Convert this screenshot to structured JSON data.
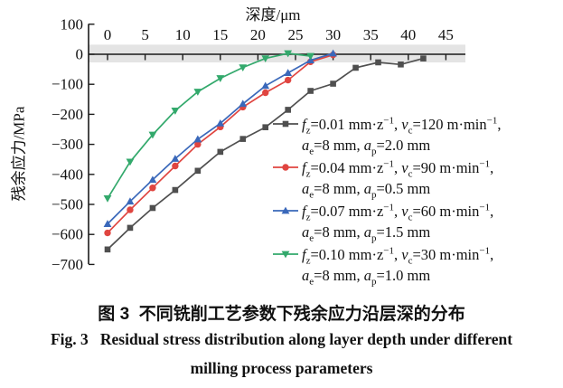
{
  "figure": {
    "x_axis_title": "深度/μm",
    "y_axis_label": "残余应力/MPa"
  },
  "captions": {
    "zh": "图 3  不同铣削工艺参数下残余应力沿层深的分布",
    "en_line1": "Fig. 3   Residual stress distribution along layer depth under different",
    "en_line2": "milling process parameters"
  },
  "chart_data": {
    "type": "line",
    "title": "深度/μm",
    "xlabel": "深度/μm",
    "ylabel": "残余应力/MPa",
    "x_axis": {
      "ticks": [
        0,
        5,
        10,
        15,
        20,
        25,
        30,
        35,
        40,
        45
      ],
      "tick_labels": [
        "0",
        "5",
        "10",
        "15",
        "20",
        "25",
        "30",
        "35",
        "40",
        "45"
      ],
      "range": [
        0,
        47.5
      ],
      "position": "drawn along the 0 MPa line, labels above"
    },
    "y_axis": {
      "ticks": [
        100,
        0,
        -100,
        -200,
        -300,
        -400,
        -500,
        -600,
        -700
      ],
      "tick_labels": [
        "100",
        "0",
        "−100",
        "−200",
        "−300",
        "−400",
        "−500",
        "−600",
        "−700"
      ],
      "range": [
        -700,
        100
      ]
    },
    "grid": false,
    "legend_position": "right side, overlapping plot area, no border",
    "zero_band": {
      "value_from": 32,
      "value_to": -27,
      "color": "#e4e4e4"
    },
    "axis_color": "#1a1a1a",
    "series": [
      {
        "name": "fz=0.01 mm/z, vc=120 m/min, ae=8 mm, ap=2.0 mm",
        "marker": "square",
        "color": "#4f4f4f",
        "legend_line1": "f_{z}=0.01 mm·z^{−1}, v_{c}=120 m·min^{−1},",
        "legend_line2": "a_{e}=8 mm, a_{p}=2.0 mm",
        "points": [
          [
            0,
            -650
          ],
          [
            3,
            -578
          ],
          [
            6,
            -512
          ],
          [
            9,
            -452
          ],
          [
            12,
            -388
          ],
          [
            15,
            -325
          ],
          [
            18,
            -282
          ],
          [
            21,
            -243
          ],
          [
            24,
            -185
          ],
          [
            27,
            -122
          ],
          [
            30,
            -98
          ],
          [
            33,
            -45
          ],
          [
            36,
            -27
          ],
          [
            39,
            -34
          ],
          [
            42,
            -14
          ]
        ]
      },
      {
        "name": "fz=0.04 mm/z, vc=90 m/min, ae=8 mm, ap=0.5 mm",
        "marker": "circle",
        "color": "#e04540",
        "legend_line1": "f_{z}=0.04 mm·z^{−1}, v_{c}=90 m·min^{−1},",
        "legend_line2": "a_{e}=8 mm, a_{p}=0.5 mm",
        "points": [
          [
            0,
            -595
          ],
          [
            3,
            -518
          ],
          [
            6,
            -445
          ],
          [
            9,
            -372
          ],
          [
            12,
            -300
          ],
          [
            15,
            -242
          ],
          [
            18,
            -176
          ],
          [
            21,
            -128
          ],
          [
            24,
            -86
          ],
          [
            27,
            -25
          ],
          [
            30,
            -2
          ]
        ]
      },
      {
        "name": "fz=0.07 mm/z, vc=60 m/min, ae=8 mm, ap=1.5 mm",
        "marker": "triangle-up",
        "color": "#3a68ba",
        "legend_line1": "f_{z}=0.07 mm·z^{−1}, v_{c}=60 m·min^{−1},",
        "legend_line2": "a_{e}=8 mm, a_{p}=1.5 mm",
        "points": [
          [
            0,
            -565
          ],
          [
            3,
            -490
          ],
          [
            6,
            -418
          ],
          [
            9,
            -348
          ],
          [
            12,
            -283
          ],
          [
            15,
            -230
          ],
          [
            18,
            -165
          ],
          [
            21,
            -105
          ],
          [
            24,
            -62
          ],
          [
            27,
            -20
          ],
          [
            30,
            3
          ]
        ]
      },
      {
        "name": "fz=0.10 mm/z, vc=30 m/min, ae=8 mm, ap=1.0 mm",
        "marker": "triangle-down",
        "color": "#33a96c",
        "legend_line1": "f_{z}=0.10 mm·z^{−1}, v_{c}=30 m·min^{−1},",
        "legend_line2": "a_{e}=8 mm, a_{p}=1.0 mm",
        "points": [
          [
            0,
            -480
          ],
          [
            3,
            -358
          ],
          [
            6,
            -268
          ],
          [
            9,
            -188
          ],
          [
            12,
            -125
          ],
          [
            15,
            -80
          ],
          [
            18,
            -44
          ],
          [
            21,
            -14
          ],
          [
            24,
            3
          ],
          [
            27,
            -6
          ]
        ]
      }
    ]
  }
}
